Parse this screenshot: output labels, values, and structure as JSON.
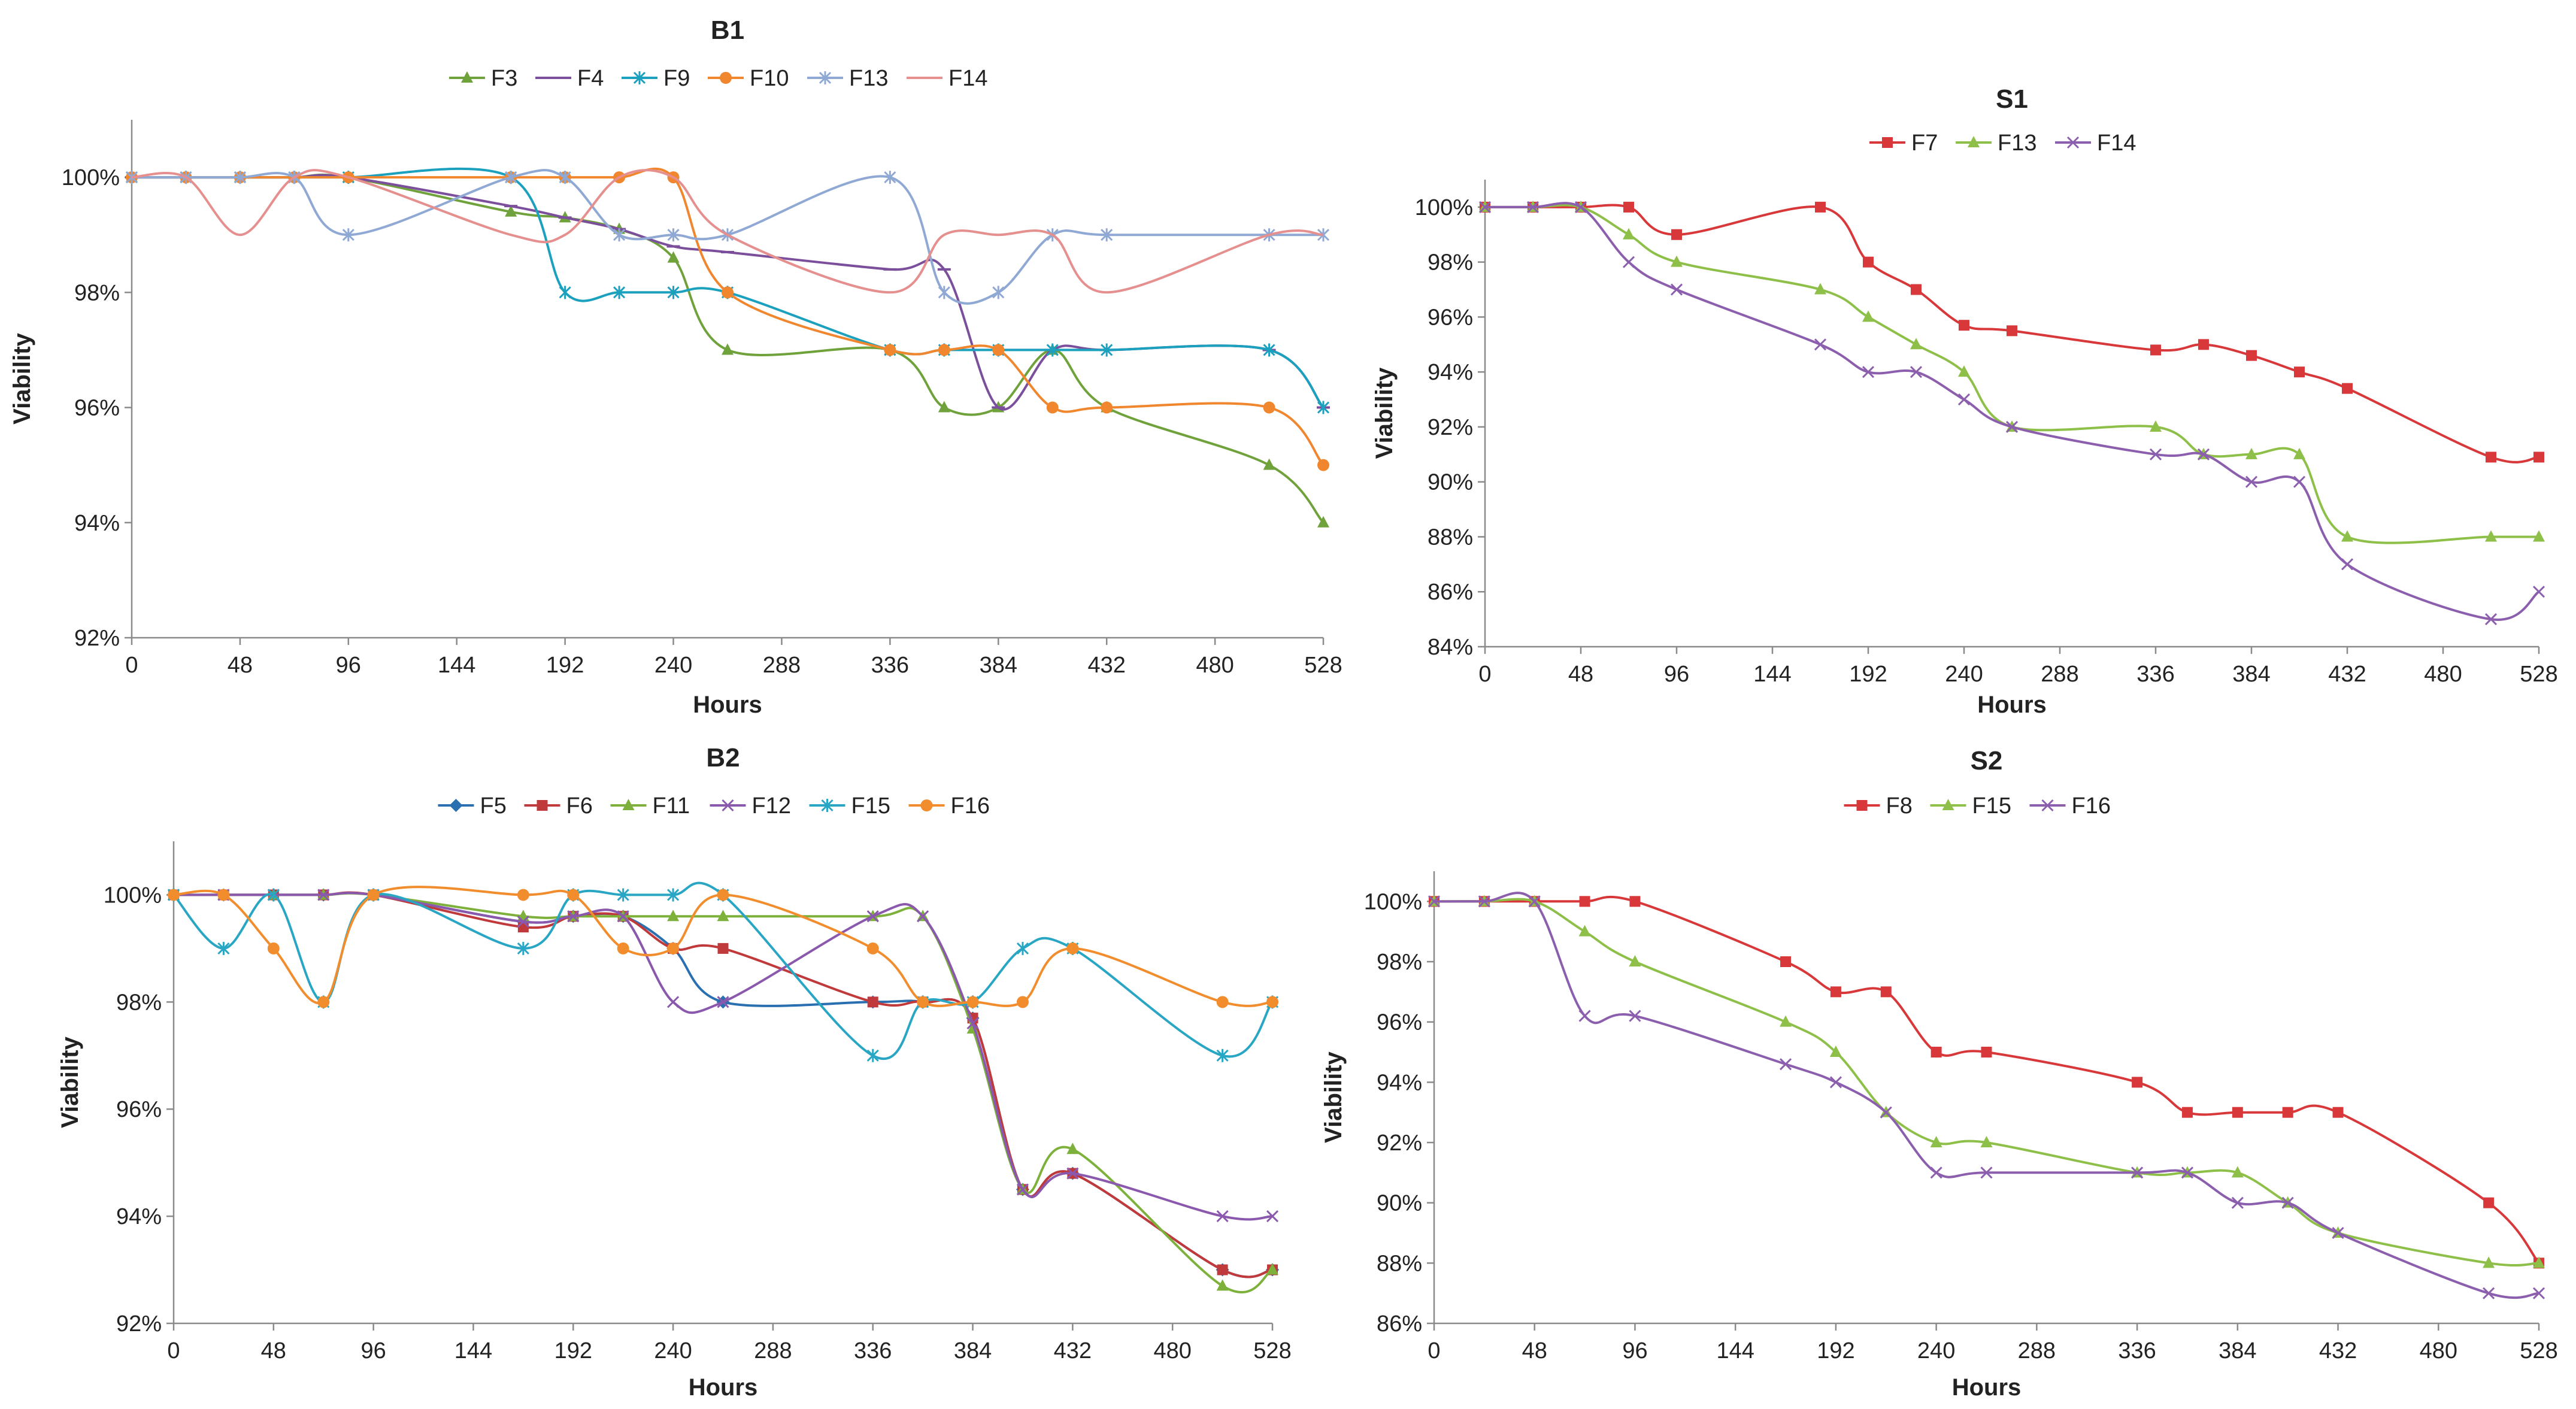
{
  "chart_data": [
    {
      "id": "b1",
      "type": "line",
      "title": "B1",
      "xlabel": "Hours",
      "ylabel": "Viability",
      "legend": "top-center",
      "grid": false,
      "xlim": [
        0,
        528
      ],
      "ylim": [
        92,
        101
      ],
      "xticks": [
        0,
        48,
        96,
        144,
        192,
        240,
        288,
        336,
        384,
        432,
        480,
        528
      ],
      "xtick_labels": [
        "0",
        "48",
        "96",
        "144",
        "192",
        "240",
        "288",
        "336",
        "384",
        "432",
        "480",
        "528"
      ],
      "yticks": [
        92,
        94,
        96,
        98,
        100
      ],
      "ytick_labels": [
        "92%",
        "94%",
        "96%",
        "98%",
        "100%"
      ],
      "series": [
        {
          "name": "F3",
          "color": "#70a23c",
          "marker": "triangle",
          "x": [
            0,
            24,
            48,
            72,
            96,
            168,
            192,
            216,
            240,
            264,
            336,
            360,
            384,
            408,
            432,
            504,
            528
          ],
          "y": [
            100,
            100,
            100,
            100,
            100,
            99.4,
            99.3,
            99.1,
            98.6,
            97,
            97,
            96,
            96,
            97,
            96,
            95,
            94
          ]
        },
        {
          "name": "F4",
          "color": "#7b4f9c",
          "marker": "dash",
          "x": [
            0,
            24,
            48,
            72,
            96,
            168,
            192,
            216,
            240,
            264,
            336,
            360,
            384,
            408,
            432,
            504,
            528
          ],
          "y": [
            100,
            100,
            100,
            100,
            100,
            99.5,
            99.3,
            99.1,
            98.8,
            98.7,
            98.4,
            98.4,
            96,
            97,
            97,
            97,
            96
          ]
        },
        {
          "name": "F9",
          "color": "#1ba0be",
          "marker": "star",
          "x": [
            0,
            24,
            48,
            72,
            96,
            168,
            192,
            216,
            240,
            264,
            336,
            360,
            384,
            408,
            432,
            504,
            528
          ],
          "y": [
            100,
            100,
            100,
            100,
            100,
            100,
            98,
            98,
            98,
            98,
            97,
            97,
            97,
            97,
            97,
            97,
            96
          ]
        },
        {
          "name": "F10",
          "color": "#f0862e",
          "marker": "circle",
          "x": [
            0,
            24,
            48,
            72,
            96,
            168,
            192,
            216,
            240,
            264,
            336,
            360,
            384,
            408,
            432,
            504,
            528
          ],
          "y": [
            100,
            100,
            100,
            100,
            100,
            100,
            100,
            100,
            100,
            98,
            97,
            97,
            97,
            96,
            96,
            96,
            95
          ]
        },
        {
          "name": "F13",
          "color": "#8fa9d4",
          "marker": "star",
          "x": [
            0,
            24,
            48,
            72,
            96,
            168,
            192,
            216,
            240,
            264,
            336,
            360,
            384,
            408,
            432,
            504,
            528
          ],
          "y": [
            100,
            100,
            100,
            100,
            99,
            100,
            100,
            99,
            99,
            99,
            100,
            98,
            98,
            99,
            99,
            99,
            99
          ]
        },
        {
          "name": "F14",
          "color": "#e58f8f",
          "marker": "none",
          "x": [
            0,
            24,
            48,
            72,
            96,
            168,
            192,
            216,
            240,
            264,
            336,
            360,
            384,
            408,
            432,
            504,
            528
          ],
          "y": [
            100,
            100,
            99,
            100,
            100,
            99,
            99,
            100,
            100,
            99,
            98,
            99,
            99,
            99,
            98,
            99,
            99
          ]
        }
      ]
    },
    {
      "id": "s1",
      "type": "line",
      "title": "S1",
      "xlabel": "Hours",
      "ylabel": "Viability",
      "legend": "top-center",
      "grid": false,
      "xlim": [
        0,
        528
      ],
      "ylim": [
        84,
        101
      ],
      "xticks": [
        0,
        48,
        96,
        144,
        192,
        240,
        288,
        336,
        384,
        432,
        480,
        528
      ],
      "xtick_labels": [
        "0",
        "48",
        "96",
        "144",
        "192",
        "240",
        "288",
        "336",
        "384",
        "432",
        "480",
        "528"
      ],
      "yticks": [
        84,
        86,
        88,
        90,
        92,
        94,
        96,
        98,
        100
      ],
      "ytick_labels": [
        "84%",
        "86%",
        "88%",
        "90%",
        "92%",
        "94%",
        "96%",
        "98%",
        "100%"
      ],
      "series": [
        {
          "name": "F7",
          "color": "#d8383a",
          "marker": "square",
          "x": [
            0,
            24,
            48,
            72,
            96,
            168,
            192,
            216,
            240,
            264,
            336,
            360,
            384,
            408,
            432,
            504,
            528
          ],
          "y": [
            100,
            100,
            100,
            100,
            99,
            100,
            98,
            97,
            95.7,
            95.5,
            94.8,
            95,
            94.6,
            94,
            93.4,
            90.9,
            90.9
          ]
        },
        {
          "name": "F13",
          "color": "#8ec049",
          "marker": "triangle",
          "x": [
            0,
            24,
            48,
            72,
            96,
            168,
            192,
            216,
            240,
            264,
            336,
            360,
            384,
            408,
            432,
            504,
            528
          ],
          "y": [
            100,
            100,
            100,
            99,
            98,
            97,
            96,
            95,
            94,
            92,
            92,
            91,
            91,
            91,
            88,
            88,
            88
          ]
        },
        {
          "name": "F14",
          "color": "#8c5fae",
          "marker": "x",
          "x": [
            0,
            24,
            48,
            72,
            96,
            168,
            192,
            216,
            240,
            264,
            336,
            360,
            384,
            408,
            432,
            504,
            528
          ],
          "y": [
            100,
            100,
            100,
            98,
            97,
            95,
            94,
            94,
            93,
            92,
            91,
            91,
            90,
            90,
            87,
            85,
            86
          ]
        }
      ]
    },
    {
      "id": "b2",
      "type": "line",
      "title": "B2",
      "xlabel": "Hours",
      "ylabel": "Viability",
      "legend": "top-center",
      "grid": false,
      "xlim": [
        0,
        528
      ],
      "ylim": [
        92,
        101
      ],
      "xticks": [
        0,
        48,
        96,
        144,
        192,
        240,
        288,
        336,
        384,
        432,
        480,
        528
      ],
      "xtick_labels": [
        "0",
        "48",
        "96",
        "144",
        "192",
        "240",
        "288",
        "336",
        "384",
        "432",
        "480",
        "528"
      ],
      "yticks": [
        92,
        94,
        96,
        98,
        100
      ],
      "ytick_labels": [
        "92%",
        "94%",
        "96%",
        "98%",
        "100%"
      ],
      "series": [
        {
          "name": "F5",
          "color": "#2a6fb0",
          "marker": "diamond",
          "x": [
            0,
            24,
            48,
            72,
            96,
            168,
            192,
            216,
            240,
            264,
            336,
            360,
            384,
            408,
            432,
            504,
            528
          ],
          "y": [
            100,
            100,
            100,
            100,
            100,
            99.5,
            99.6,
            99.6,
            99,
            98,
            98,
            98,
            97.7,
            94.5,
            94.8,
            93,
            93
          ]
        },
        {
          "name": "F6",
          "color": "#c0393b",
          "marker": "square",
          "x": [
            0,
            24,
            48,
            72,
            96,
            168,
            192,
            216,
            240,
            264,
            336,
            360,
            384,
            408,
            432,
            504,
            528
          ],
          "y": [
            100,
            100,
            100,
            100,
            100,
            99.4,
            99.6,
            99.6,
            99,
            99,
            98,
            98,
            97.7,
            94.5,
            94.8,
            93,
            93
          ]
        },
        {
          "name": "F11",
          "color": "#7db13c",
          "marker": "triangle",
          "x": [
            0,
            24,
            48,
            72,
            96,
            168,
            192,
            216,
            240,
            264,
            336,
            360,
            384,
            408,
            432,
            504,
            528
          ],
          "y": [
            100,
            100,
            100,
            100,
            100,
            99.6,
            99.6,
            99.6,
            99.6,
            99.6,
            99.6,
            99.6,
            97.5,
            94.5,
            95.25,
            92.7,
            93
          ]
        },
        {
          "name": "F12",
          "color": "#8a58ad",
          "marker": "x",
          "x": [
            0,
            24,
            48,
            72,
            96,
            168,
            192,
            216,
            240,
            264,
            336,
            360,
            384,
            408,
            432,
            504,
            528
          ],
          "y": [
            100,
            100,
            100,
            100,
            100,
            99.5,
            99.6,
            99.6,
            98,
            98,
            99.6,
            99.6,
            97.6,
            94.5,
            94.8,
            94,
            94
          ]
        },
        {
          "name": "F15",
          "color": "#28a6c4",
          "marker": "star",
          "x": [
            0,
            24,
            48,
            72,
            96,
            168,
            192,
            216,
            240,
            264,
            336,
            360,
            384,
            408,
            432,
            504,
            528
          ],
          "y": [
            100,
            99,
            100,
            98,
            100,
            99,
            100,
            100,
            100,
            100,
            97,
            98,
            98,
            99,
            99,
            97,
            98
          ]
        },
        {
          "name": "F16",
          "color": "#f28d2d",
          "marker": "circle",
          "x": [
            0,
            24,
            48,
            72,
            96,
            168,
            192,
            216,
            240,
            264,
            336,
            360,
            384,
            408,
            432,
            504,
            528
          ],
          "y": [
            100,
            100,
            99,
            98,
            100,
            100,
            100,
            99,
            99,
            100,
            99,
            98,
            98,
            98,
            99,
            98,
            98
          ]
        }
      ]
    },
    {
      "id": "s2",
      "type": "line",
      "title": "S2",
      "xlabel": "Hours",
      "ylabel": "Viability",
      "legend": "top-center",
      "grid": false,
      "xlim": [
        0,
        528
      ],
      "ylim": [
        86,
        101
      ],
      "xticks": [
        0,
        48,
        96,
        144,
        192,
        240,
        288,
        336,
        384,
        432,
        480,
        528
      ],
      "xtick_labels": [
        "0",
        "48",
        "96",
        "144",
        "192",
        "240",
        "288",
        "336",
        "384",
        "432",
        "480",
        "528"
      ],
      "yticks": [
        86,
        88,
        90,
        92,
        94,
        96,
        98,
        100
      ],
      "ytick_labels": [
        "86%",
        "88%",
        "90%",
        "92%",
        "94%",
        "96%",
        "98%",
        "100%"
      ],
      "series": [
        {
          "name": "F8",
          "color": "#d8383a",
          "marker": "square",
          "x": [
            0,
            24,
            48,
            72,
            96,
            168,
            192,
            216,
            240,
            264,
            336,
            360,
            384,
            408,
            432,
            504,
            528
          ],
          "y": [
            100,
            100,
            100,
            100,
            100,
            98,
            97,
            97,
            95,
            95,
            94,
            93,
            93,
            93,
            93,
            90,
            88
          ]
        },
        {
          "name": "F15",
          "color": "#8ec049",
          "marker": "triangle",
          "x": [
            0,
            24,
            48,
            72,
            96,
            168,
            192,
            216,
            240,
            264,
            336,
            360,
            384,
            408,
            432,
            504,
            528
          ],
          "y": [
            100,
            100,
            100,
            99,
            98,
            96,
            95,
            93,
            92,
            92,
            91,
            91,
            91,
            90,
            89,
            88,
            88
          ]
        },
        {
          "name": "F16",
          "color": "#8c5fae",
          "marker": "x",
          "x": [
            0,
            24,
            48,
            72,
            96,
            168,
            192,
            216,
            240,
            264,
            336,
            360,
            384,
            408,
            432,
            504,
            528
          ],
          "y": [
            100,
            100,
            100,
            96.2,
            96.2,
            94.6,
            94,
            93,
            91,
            91,
            91,
            91,
            90,
            90,
            89,
            87,
            87
          ]
        }
      ]
    }
  ]
}
